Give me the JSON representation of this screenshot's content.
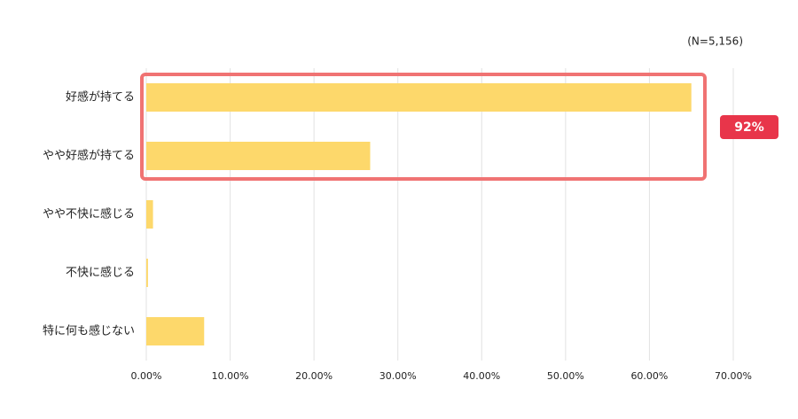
{
  "chart_data": {
    "type": "bar",
    "orientation": "horizontal",
    "categories": [
      "好感が持てる",
      "やや好感が持てる",
      "やや不快に感じる",
      "不快に感じる",
      "特に何も感じない"
    ],
    "values": [
      65.0,
      26.7,
      0.8,
      0.2,
      6.9
    ],
    "color": "#fdd86b",
    "xlim": [
      0,
      70
    ],
    "xticks": [
      {
        "value": 0,
        "label": "0.00%"
      },
      {
        "value": 10,
        "label": "10.00%"
      },
      {
        "value": 20,
        "label": "20.00%"
      },
      {
        "value": 30,
        "label": "30.00%"
      },
      {
        "value": 40,
        "label": "40.00%"
      },
      {
        "value": 50,
        "label": "50.00%"
      },
      {
        "value": 60,
        "label": "60.00%"
      },
      {
        "value": 70,
        "label": "70.00%"
      }
    ],
    "grid": true,
    "annotations": [
      "(N=5,156)",
      "92%"
    ]
  }
}
